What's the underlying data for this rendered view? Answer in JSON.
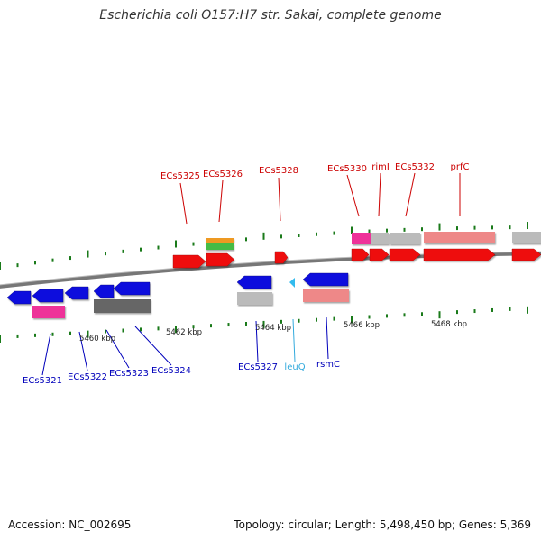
{
  "title": "Escherichia coli O157:H7 str. Sakai, complete genome",
  "footer": {
    "accession": "Accession: NC_002695",
    "summary": "Topology: circular; Length: 5,498,450 bp; Genes: 5,369"
  },
  "colors": {
    "forward_cds": "#ee1111",
    "reverse_cds": "#1111dd",
    "pink_feature": "#ee3399",
    "light_red": "#ee8888",
    "gray_feature": "#bbbbbb",
    "dark_gray_feature": "#666666",
    "orange": "#ee9922",
    "green": "#44bb44",
    "trna": "#33bbee",
    "backbone": "#777777",
    "tick": "#1a7a1a",
    "label_red": "#cc0000",
    "label_blue": "#0000bb",
    "label_cyan": "#33aadd"
  },
  "scale_labels": [
    "5460 kbp",
    "5462 kbp",
    "5464 kbp",
    "5466 kbp",
    "5468 kbp"
  ],
  "gene_labels": {
    "top": [
      "ECs5325",
      "ECs5326",
      "ECs5328",
      "ECs5330",
      "rimI",
      "ECs5332",
      "prfC"
    ],
    "bottom": [
      "ECs5321",
      "ECs5322",
      "ECs5323",
      "ECs5324",
      "ECs5327",
      "leuQ",
      "rsmC"
    ]
  }
}
